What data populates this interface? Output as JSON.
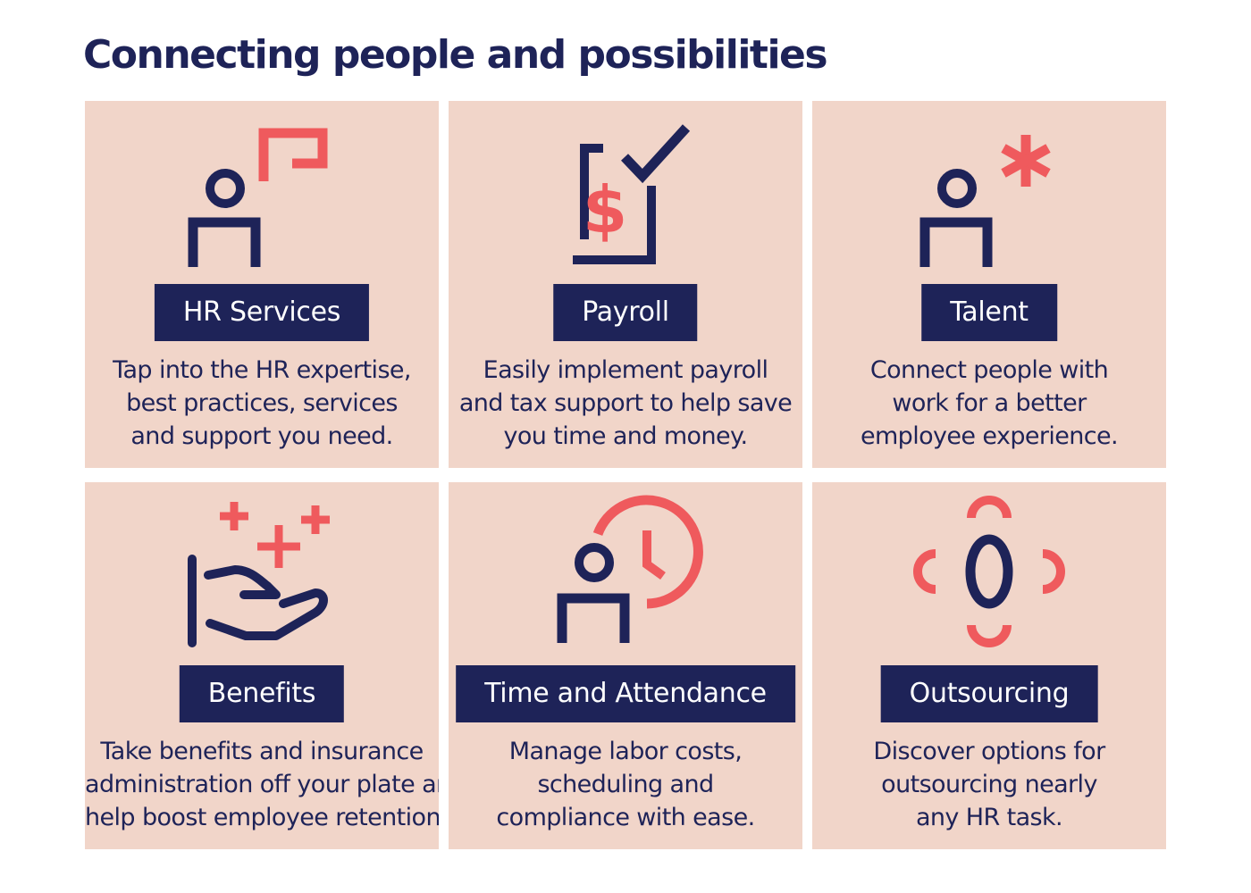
{
  "title": "Connecting people and possibilities",
  "colors": {
    "navy": "#1e2358",
    "coral": "#ef5a5d",
    "card_bg": "#f1d5c9"
  },
  "cards": [
    {
      "icon": "person-speech-bubble-icon",
      "label": "HR Services",
      "description": [
        "Tap into the HR expertise,",
        "best practices, services",
        "and support you need."
      ]
    },
    {
      "icon": "dollar-document-check-icon",
      "label": "Payroll",
      "description": [
        "Easily implement payroll",
        "and tax support to help save",
        "you time and money."
      ]
    },
    {
      "icon": "person-star-icon",
      "label": "Talent",
      "description": [
        "Connect people with",
        "work for a better",
        "employee experience."
      ]
    },
    {
      "icon": "hand-plus-signs-icon",
      "label": "Benefits",
      "description": [
        "Take benefits and insurance",
        "administration off your plate and",
        "help boost employee retention."
      ]
    },
    {
      "icon": "person-clock-icon",
      "label": "Time and Attendance",
      "description": [
        "Manage labor costs,",
        "scheduling and",
        "compliance with ease."
      ]
    },
    {
      "icon": "outsourcing-cycle-icon",
      "label": "Outsourcing",
      "description": [
        "Discover options for",
        "outsourcing nearly",
        "any HR task."
      ]
    }
  ]
}
